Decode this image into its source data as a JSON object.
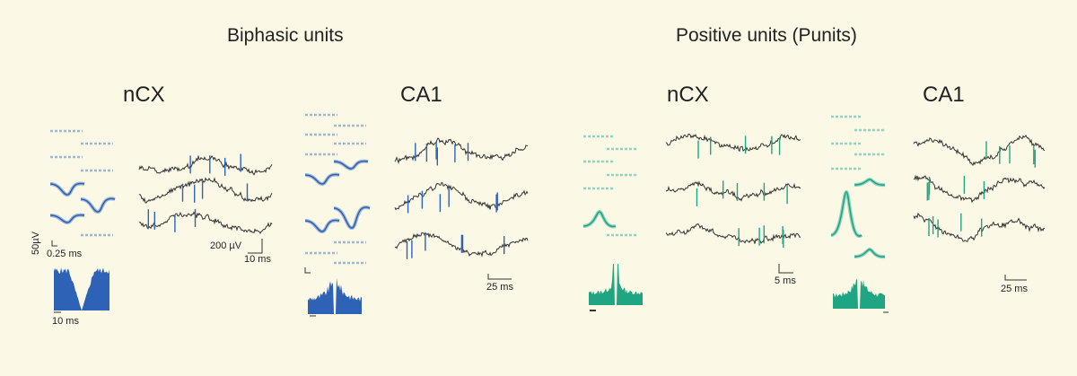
{
  "headings": {
    "biphasic": "Biphasic units",
    "positive": "Positive units (Punits)"
  },
  "regions": {
    "b_ncx": "nCX",
    "b_ca1": "CA1",
    "p_ncx": "nCX",
    "p_ca1": "CA1"
  },
  "scale_labels": {
    "amp_50uv": "50µV",
    "time_025ms": "0.25 ms",
    "time_10ms_hist": "10 ms",
    "amp_200uv": "200 µV",
    "time_10ms": "10 ms",
    "time_25ms_a": "25 ms",
    "time_5ms": "5 ms",
    "time_25ms_b": "25 ms"
  },
  "colors": {
    "background": "#fbf9e6",
    "biphasic_blue": "#2e62b6",
    "biphasic_light": "#9fb6d6",
    "positive_green": "#1fa581",
    "positive_light": "#8fd3c0",
    "trace_dark": "#333333"
  }
}
